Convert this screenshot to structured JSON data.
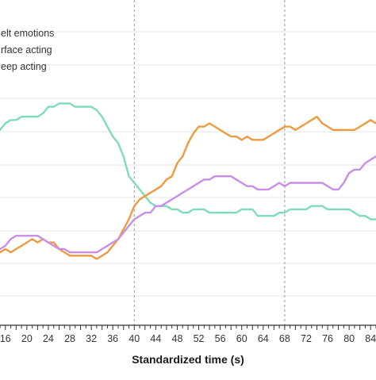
{
  "chart_data": {
    "type": "line",
    "title": "",
    "xlabel": "Standardized time (s)",
    "ylabel": "",
    "xlim": [
      15,
      85
    ],
    "x_tick_labels": [
      "16",
      "20",
      "24",
      "28",
      "32",
      "36",
      "40",
      "44",
      "48",
      "52",
      "56",
      "60",
      "64",
      "68",
      "72",
      "76",
      "80",
      "84"
    ],
    "grid": "horizontal",
    "reference_lines_x": [
      40,
      68
    ],
    "legend": {
      "placement": "top-left"
    },
    "colors": {
      "axis": "#333333",
      "grid": "#e6e6e6",
      "reference": "#999999"
    },
    "series": [
      {
        "name": "Felt emotions",
        "legend_text": "elt emotions",
        "color": "#7fdcb8",
        "x": [
          15,
          16,
          17,
          18,
          19,
          20,
          21,
          22,
          23,
          24,
          25,
          26,
          27,
          28,
          29,
          30,
          31,
          32,
          33,
          34,
          35,
          36,
          37,
          38,
          39,
          40,
          41,
          42,
          43,
          44,
          45,
          46,
          47,
          48,
          49,
          50,
          51,
          52,
          53,
          54,
          55,
          56,
          57,
          58,
          59,
          60,
          61,
          62,
          63,
          64,
          65,
          66,
          67,
          68,
          69,
          70,
          71,
          72,
          73,
          74,
          75,
          76,
          77,
          78,
          79,
          80,
          81,
          82,
          83,
          84,
          85
        ],
        "values": [
          0.6,
          0.62,
          0.63,
          0.63,
          0.64,
          0.64,
          0.64,
          0.64,
          0.65,
          0.67,
          0.67,
          0.68,
          0.68,
          0.68,
          0.67,
          0.67,
          0.67,
          0.67,
          0.66,
          0.64,
          0.61,
          0.58,
          0.56,
          0.52,
          0.46,
          0.44,
          0.42,
          0.4,
          0.38,
          0.37,
          0.37,
          0.37,
          0.36,
          0.36,
          0.35,
          0.35,
          0.36,
          0.36,
          0.36,
          0.35,
          0.35,
          0.35,
          0.35,
          0.35,
          0.35,
          0.36,
          0.36,
          0.36,
          0.34,
          0.34,
          0.34,
          0.34,
          0.35,
          0.35,
          0.36,
          0.36,
          0.36,
          0.36,
          0.37,
          0.37,
          0.37,
          0.36,
          0.36,
          0.36,
          0.36,
          0.36,
          0.35,
          0.34,
          0.34,
          0.33,
          0.33
        ]
      },
      {
        "name": "Surface acting",
        "legend_text": "rface acting",
        "color": "#ef9a3f",
        "x": [
          15,
          16,
          17,
          18,
          19,
          20,
          21,
          22,
          23,
          24,
          25,
          26,
          27,
          28,
          29,
          30,
          31,
          32,
          33,
          34,
          35,
          36,
          37,
          38,
          39,
          40,
          41,
          42,
          43,
          44,
          45,
          46,
          47,
          48,
          49,
          50,
          51,
          52,
          53,
          54,
          55,
          56,
          57,
          58,
          59,
          60,
          61,
          62,
          63,
          64,
          65,
          66,
          67,
          68,
          69,
          70,
          71,
          72,
          73,
          74,
          75,
          76,
          77,
          78,
          79,
          80,
          81,
          82,
          83,
          84,
          85
        ],
        "values": [
          0.23,
          0.24,
          0.23,
          0.24,
          0.25,
          0.26,
          0.27,
          0.26,
          0.27,
          0.26,
          0.26,
          0.24,
          0.23,
          0.22,
          0.22,
          0.22,
          0.22,
          0.22,
          0.21,
          0.22,
          0.23,
          0.25,
          0.27,
          0.3,
          0.33,
          0.37,
          0.39,
          0.4,
          0.41,
          0.42,
          0.43,
          0.45,
          0.46,
          0.5,
          0.52,
          0.56,
          0.59,
          0.61,
          0.61,
          0.62,
          0.61,
          0.6,
          0.59,
          0.58,
          0.58,
          0.57,
          0.58,
          0.57,
          0.57,
          0.57,
          0.58,
          0.59,
          0.6,
          0.61,
          0.61,
          0.6,
          0.61,
          0.62,
          0.63,
          0.64,
          0.62,
          0.61,
          0.6,
          0.6,
          0.6,
          0.6,
          0.6,
          0.61,
          0.62,
          0.63,
          0.62
        ]
      },
      {
        "name": "Deep acting",
        "legend_text": "eep acting",
        "color": "#c98ee8",
        "x": [
          15,
          16,
          17,
          18,
          19,
          20,
          21,
          22,
          23,
          24,
          25,
          26,
          27,
          28,
          29,
          30,
          31,
          32,
          33,
          34,
          35,
          36,
          37,
          38,
          39,
          40,
          41,
          42,
          43,
          44,
          45,
          46,
          47,
          48,
          49,
          50,
          51,
          52,
          53,
          54,
          55,
          56,
          57,
          58,
          59,
          60,
          61,
          62,
          63,
          64,
          65,
          66,
          67,
          68,
          69,
          70,
          71,
          72,
          73,
          74,
          75,
          76,
          77,
          78,
          79,
          80,
          81,
          82,
          83,
          84,
          85
        ],
        "values": [
          0.24,
          0.25,
          0.27,
          0.28,
          0.28,
          0.28,
          0.28,
          0.28,
          0.27,
          0.26,
          0.25,
          0.24,
          0.24,
          0.23,
          0.23,
          0.23,
          0.23,
          0.23,
          0.23,
          0.24,
          0.25,
          0.26,
          0.27,
          0.29,
          0.31,
          0.33,
          0.34,
          0.35,
          0.35,
          0.37,
          0.37,
          0.38,
          0.39,
          0.4,
          0.41,
          0.42,
          0.43,
          0.44,
          0.45,
          0.45,
          0.46,
          0.46,
          0.46,
          0.46,
          0.45,
          0.44,
          0.43,
          0.43,
          0.42,
          0.42,
          0.42,
          0.43,
          0.44,
          0.43,
          0.44,
          0.44,
          0.44,
          0.44,
          0.44,
          0.44,
          0.44,
          0.43,
          0.42,
          0.42,
          0.44,
          0.47,
          0.48,
          0.48,
          0.5,
          0.51,
          0.52
        ]
      }
    ]
  }
}
